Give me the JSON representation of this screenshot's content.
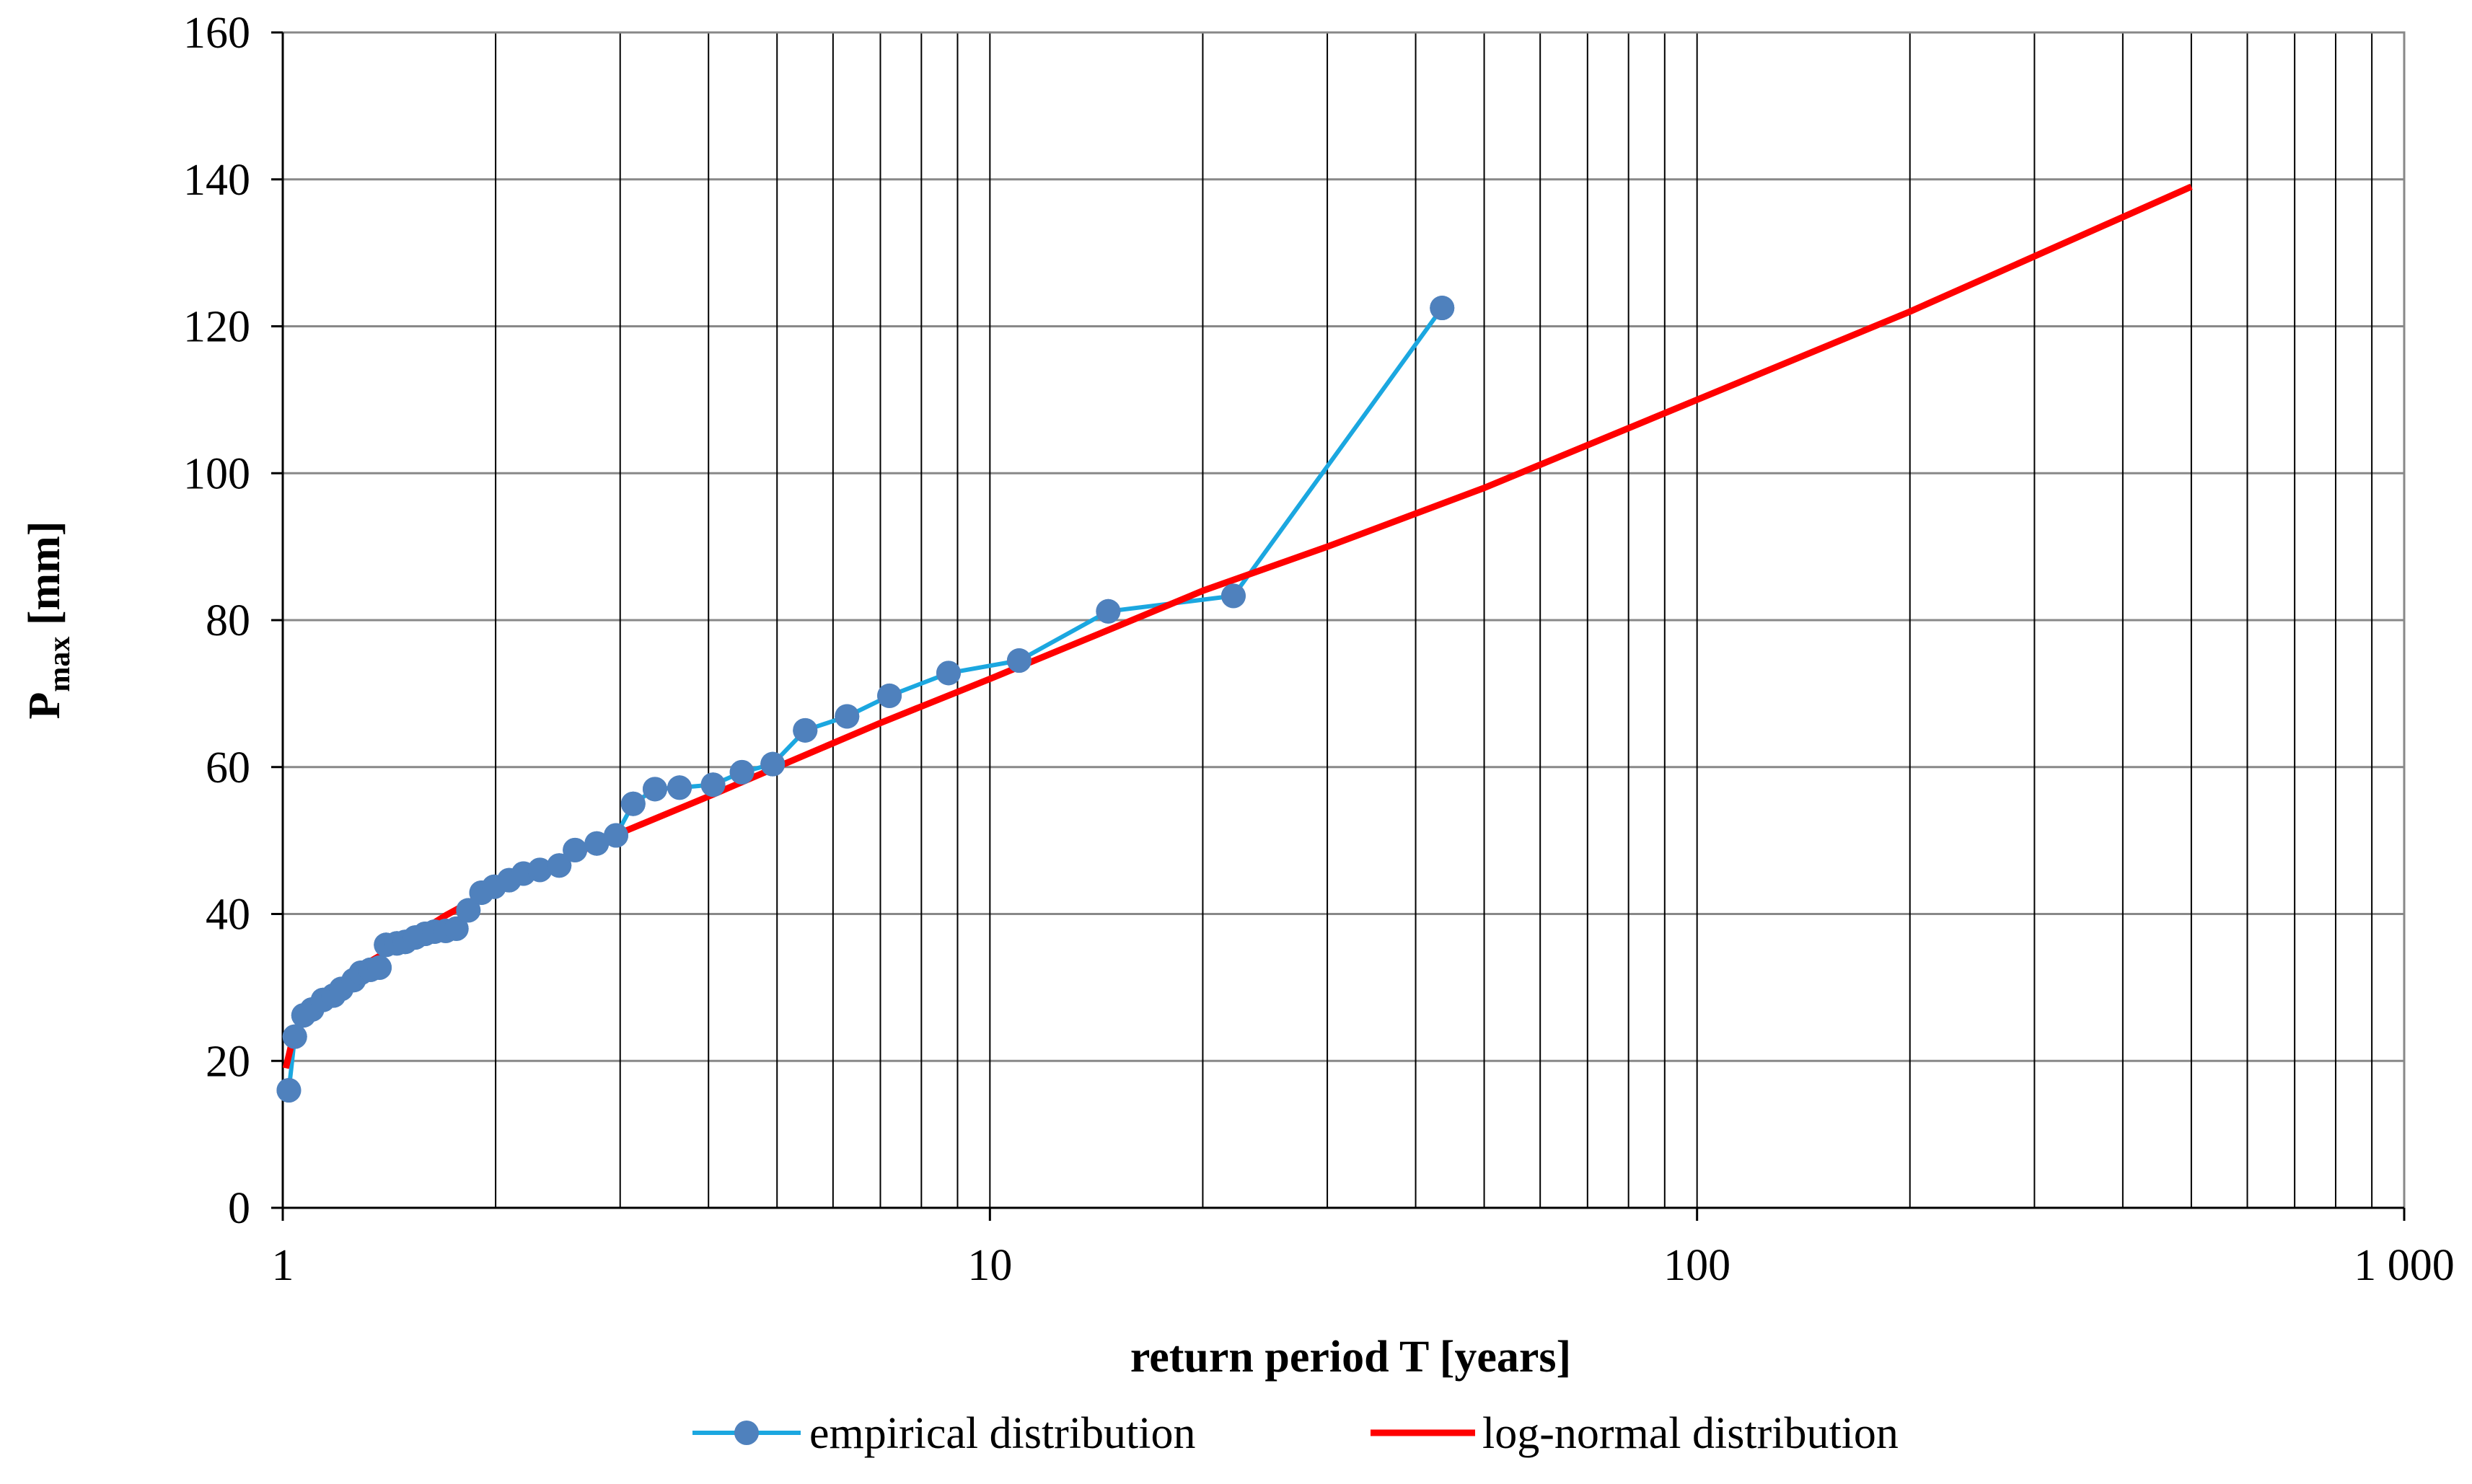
{
  "chart_data": {
    "type": "line",
    "xscale": "log",
    "xlim": [
      1,
      1000
    ],
    "ylim": [
      0,
      160
    ],
    "xlabel": "return period T [years]",
    "ylabel": {
      "main": "P",
      "sub": "max",
      "rest": " [mm]"
    },
    "xticks": [
      {
        "value": 1,
        "label": "1"
      },
      {
        "value": 10,
        "label": "10"
      },
      {
        "value": 100,
        "label": "100"
      },
      {
        "value": 1000,
        "label": "1 000"
      }
    ],
    "yticks": [
      {
        "value": 0,
        "label": "0"
      },
      {
        "value": 20,
        "label": "20"
      },
      {
        "value": 40,
        "label": "40"
      },
      {
        "value": 60,
        "label": "60"
      },
      {
        "value": 80,
        "label": "80"
      },
      {
        "value": 100,
        "label": "100"
      },
      {
        "value": 120,
        "label": "120"
      },
      {
        "value": 140,
        "label": "140"
      },
      {
        "value": 160,
        "label": "160"
      }
    ],
    "grid": true,
    "legend_position": "bottom",
    "series": [
      {
        "name": "empirical distribution",
        "color": "#1BA7E0",
        "marker_color": "#4F81BD",
        "markers": true,
        "points": [
          [
            1.02,
            16.0
          ],
          [
            1.04,
            23.3
          ],
          [
            1.07,
            26.2
          ],
          [
            1.1,
            27.0
          ],
          [
            1.14,
            28.3
          ],
          [
            1.18,
            28.9
          ],
          [
            1.21,
            29.8
          ],
          [
            1.26,
            31.0
          ],
          [
            1.29,
            32.0
          ],
          [
            1.33,
            32.4
          ],
          [
            1.37,
            32.7
          ],
          [
            1.4,
            35.8
          ],
          [
            1.45,
            36.0
          ],
          [
            1.49,
            36.2
          ],
          [
            1.54,
            36.8
          ],
          [
            1.59,
            37.3
          ],
          [
            1.64,
            37.6
          ],
          [
            1.7,
            37.7
          ],
          [
            1.76,
            38.0
          ],
          [
            1.83,
            40.5
          ],
          [
            1.91,
            42.9
          ],
          [
            1.99,
            43.7
          ],
          [
            2.09,
            44.6
          ],
          [
            2.19,
            45.5
          ],
          [
            2.31,
            46.0
          ],
          [
            2.46,
            46.6
          ],
          [
            2.59,
            48.7
          ],
          [
            2.78,
            49.6
          ],
          [
            2.96,
            50.7
          ],
          [
            3.13,
            55.0
          ],
          [
            3.36,
            57.0
          ],
          [
            3.64,
            57.2
          ],
          [
            4.06,
            57.6
          ],
          [
            4.46,
            59.3
          ],
          [
            4.93,
            60.4
          ],
          [
            5.48,
            65.0
          ],
          [
            6.28,
            66.9
          ],
          [
            7.21,
            69.7
          ],
          [
            8.74,
            72.8
          ],
          [
            11.0,
            74.5
          ],
          [
            14.7,
            81.2
          ],
          [
            22.1,
            83.3
          ],
          [
            43.6,
            122.5
          ]
        ]
      },
      {
        "name": "log-normal distribution",
        "color": "#FF0000",
        "markers": false,
        "points": [
          [
            1.01,
            19.0
          ],
          [
            1.03,
            22.5
          ],
          [
            1.05,
            24.5
          ],
          [
            1.1,
            27.5
          ],
          [
            1.2,
            30.5
          ],
          [
            1.3,
            33.0
          ],
          [
            1.5,
            36.5
          ],
          [
            1.7,
            39.8
          ],
          [
            2.0,
            43.5
          ],
          [
            2.5,
            47.5
          ],
          [
            3.0,
            51.0
          ],
          [
            4.0,
            56.0
          ],
          [
            5.0,
            60.0
          ],
          [
            7.0,
            66.0
          ],
          [
            10.0,
            72.0
          ],
          [
            15.0,
            79.0
          ],
          [
            20.0,
            84.0
          ],
          [
            30.0,
            90.0
          ],
          [
            50.0,
            98.0
          ],
          [
            100.0,
            110.0
          ],
          [
            200.0,
            122.0
          ],
          [
            500.0,
            139.0
          ]
        ]
      }
    ]
  }
}
